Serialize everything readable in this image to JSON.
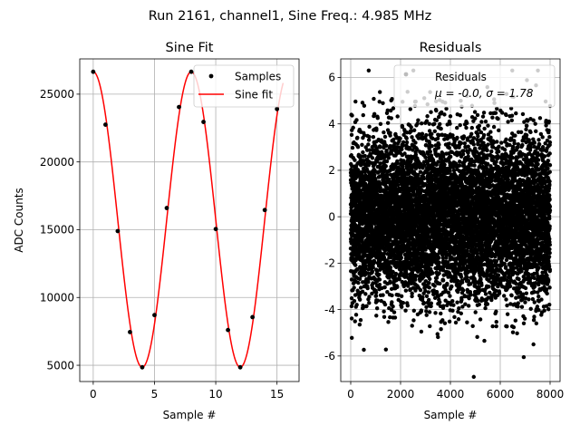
{
  "figure": {
    "suptitle": "Run 2161, channel1, Sine Freq.: 4.985 MHz"
  },
  "chart_data": [
    {
      "type": "line",
      "title": "Sine Fit",
      "xlabel": "Sample #",
      "ylabel": "ADC Counts",
      "xlim": [
        -1.1,
        16.8
      ],
      "ylim": [
        3800,
        27600
      ],
      "xticks": [
        0,
        5,
        10,
        15
      ],
      "yticks": [
        5000,
        10000,
        15000,
        20000,
        25000
      ],
      "grid": true,
      "legend_position": "top-right",
      "fit": {
        "amplitude": 10900,
        "offset": 15750,
        "period": 8.0,
        "phase_peak_x": 0.0
      },
      "series": [
        {
          "name": "Samples",
          "style": "markers",
          "color": "#000000",
          "x": [
            0,
            1,
            2,
            3,
            4,
            5,
            6,
            7,
            8,
            9,
            10,
            11,
            12,
            13,
            14,
            15
          ],
          "y": [
            26650,
            22750,
            14900,
            7450,
            4850,
            8700,
            16600,
            24050,
            26650,
            22950,
            15050,
            7600,
            4850,
            8550,
            16450,
            23900
          ]
        },
        {
          "name": "Sine fit",
          "style": "line",
          "color": "#ff0000"
        }
      ]
    },
    {
      "type": "scatter",
      "title": "Residuals",
      "xlabel": "Sample #",
      "ylabel": "",
      "xlim": [
        -400,
        8400
      ],
      "ylim": [
        -7.1,
        6.8
      ],
      "xticks": [
        0,
        2000,
        4000,
        6000,
        8000
      ],
      "yticks": [
        -6,
        -4,
        -2,
        0,
        2,
        4,
        6
      ],
      "grid": true,
      "legend_position": "top-right",
      "n_points": 8000,
      "mean": -0.0,
      "sigma": 1.78,
      "series": [
        {
          "name": "Residuals",
          "stats_label": "μ = -0.0, σ = 1.78",
          "color": "#000000"
        }
      ]
    }
  ]
}
